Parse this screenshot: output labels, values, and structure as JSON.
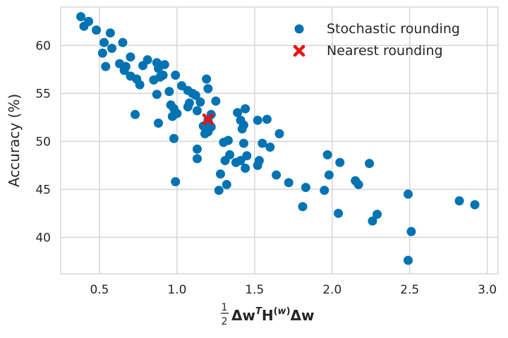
{
  "chart_data": {
    "type": "scatter",
    "title": "",
    "xlabel": "½ΔwᵀH⁽ʷ⁾Δw",
    "ylabel": "Accuracy (%)",
    "xlim": [
      0.25,
      3.07
    ],
    "ylim": [
      36.2,
      64.0
    ],
    "xticks": [
      0.5,
      1.0,
      1.5,
      2.0,
      2.5,
      3.0
    ],
    "xtick_labels": [
      "0.5",
      "1.0",
      "1.5",
      "2.0",
      "2.5",
      "3.0"
    ],
    "yticks": [
      40,
      45,
      50,
      55,
      60
    ],
    "ytick_labels": [
      "40",
      "45",
      "50",
      "55",
      "60"
    ],
    "grid": true,
    "legend_position": "top-right",
    "series": [
      {
        "name": "Stochastic rounding",
        "marker": "circle",
        "color": "#0173b2",
        "points": [
          [
            0.38,
            63.0
          ],
          [
            0.4,
            62.0
          ],
          [
            0.43,
            62.5
          ],
          [
            0.48,
            61.6
          ],
          [
            0.57,
            61.3
          ],
          [
            0.53,
            60.3
          ],
          [
            0.65,
            60.3
          ],
          [
            0.58,
            59.7
          ],
          [
            0.52,
            59.2
          ],
          [
            0.7,
            58.8
          ],
          [
            0.63,
            58.1
          ],
          [
            0.67,
            57.8
          ],
          [
            0.81,
            58.5
          ],
          [
            0.78,
            57.9
          ],
          [
            0.87,
            58.2
          ],
          [
            0.92,
            58.0
          ],
          [
            0.88,
            57.6
          ],
          [
            0.54,
            57.8
          ],
          [
            0.66,
            57.4
          ],
          [
            0.7,
            56.8
          ],
          [
            0.74,
            56.5
          ],
          [
            0.85,
            56.4
          ],
          [
            0.89,
            56.7
          ],
          [
            0.91,
            56.9
          ],
          [
            0.99,
            56.9
          ],
          [
            0.76,
            55.9
          ],
          [
            1.03,
            55.8
          ],
          [
            1.07,
            55.3
          ],
          [
            1.1,
            55.0
          ],
          [
            0.95,
            55.2
          ],
          [
            0.87,
            54.9
          ],
          [
            1.12,
            54.8
          ],
          [
            1.19,
            56.5
          ],
          [
            1.2,
            55.5
          ],
          [
            1.15,
            54.1
          ],
          [
            1.08,
            54.0
          ],
          [
            0.96,
            53.8
          ],
          [
            0.98,
            53.4
          ],
          [
            1.07,
            53.6
          ],
          [
            1.0,
            52.9
          ],
          [
            0.97,
            52.6
          ],
          [
            1.13,
            53.2
          ],
          [
            0.73,
            52.8
          ],
          [
            1.25,
            54.2
          ],
          [
            1.22,
            52.8
          ],
          [
            1.2,
            52.2
          ],
          [
            1.17,
            51.6
          ],
          [
            1.2,
            51.0
          ],
          [
            1.18,
            50.8
          ],
          [
            1.22,
            51.5
          ],
          [
            0.88,
            51.9
          ],
          [
            1.39,
            53.0
          ],
          [
            1.44,
            53.4
          ],
          [
            1.41,
            52.2
          ],
          [
            1.43,
            51.7
          ],
          [
            1.42,
            51.3
          ],
          [
            1.52,
            52.2
          ],
          [
            1.58,
            52.3
          ],
          [
            1.66,
            50.8
          ],
          [
            0.98,
            50.3
          ],
          [
            1.3,
            49.9
          ],
          [
            1.33,
            50.1
          ],
          [
            1.43,
            49.8
          ],
          [
            1.55,
            49.8
          ],
          [
            1.6,
            49.4
          ],
          [
            1.13,
            49.2
          ],
          [
            1.34,
            48.6
          ],
          [
            1.38,
            47.8
          ],
          [
            1.41,
            48.0
          ],
          [
            1.45,
            48.5
          ],
          [
            1.31,
            48.0
          ],
          [
            1.13,
            48.2
          ],
          [
            1.53,
            48.0
          ],
          [
            1.52,
            47.5
          ],
          [
            1.44,
            47.2
          ],
          [
            1.28,
            46.6
          ],
          [
            1.64,
            46.5
          ],
          [
            1.97,
            48.6
          ],
          [
            2.05,
            47.8
          ],
          [
            2.24,
            47.7
          ],
          [
            1.98,
            46.5
          ],
          [
            1.72,
            45.7
          ],
          [
            1.32,
            45.5
          ],
          [
            1.27,
            44.9
          ],
          [
            0.99,
            45.8
          ],
          [
            1.83,
            45.2
          ],
          [
            1.95,
            44.9
          ],
          [
            2.15,
            45.9
          ],
          [
            2.17,
            45.5
          ],
          [
            2.49,
            44.5
          ],
          [
            1.81,
            43.2
          ],
          [
            2.04,
            42.5
          ],
          [
            2.29,
            42.4
          ],
          [
            2.26,
            41.7
          ],
          [
            2.82,
            43.8
          ],
          [
            2.92,
            43.4
          ],
          [
            2.51,
            40.6
          ],
          [
            2.49,
            37.6
          ]
        ]
      },
      {
        "name": "Nearest rounding",
        "marker": "x",
        "color": "#ee1111",
        "points": [
          [
            1.2,
            52.3
          ]
        ]
      }
    ]
  }
}
